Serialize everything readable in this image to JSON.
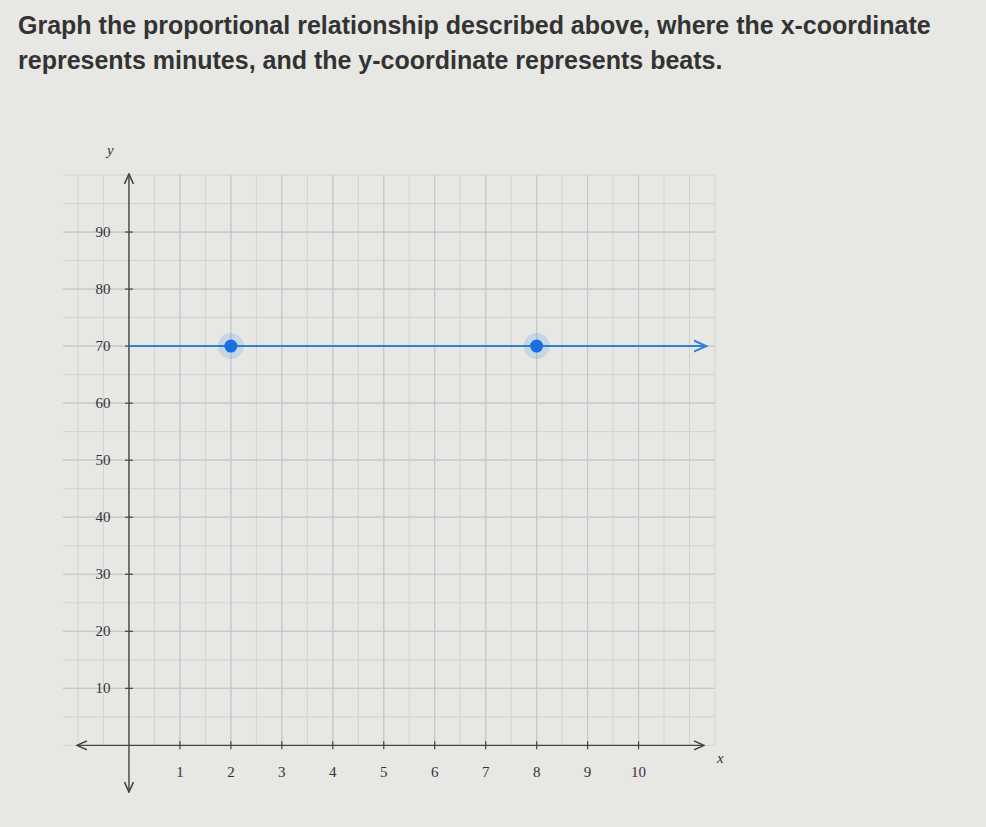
{
  "chart_data": {
    "type": "line",
    "title": "Graph the proportional relationship described above, where the x-coordinate represents minutes, and the y-coordinate represents beats.",
    "x_label": "x",
    "y_label": "y",
    "xlim": [
      -1,
      11.5
    ],
    "ylim": [
      -8,
      100
    ],
    "xticks": [
      1,
      2,
      3,
      4,
      5,
      6,
      7,
      8,
      9,
      10
    ],
    "yticks": [
      10,
      20,
      30,
      40,
      50,
      60,
      70,
      80,
      90
    ],
    "grid": true,
    "series": [
      {
        "type": "line",
        "color": "#2f80d8",
        "marker": "arrow",
        "line_style": "solid",
        "x": [
          0,
          11.3
        ],
        "values": [
          70,
          70
        ]
      },
      {
        "type": "scatter",
        "color": "#1a6fe0",
        "marker": "circle",
        "x": [
          2,
          8
        ],
        "values": [
          70,
          70
        ]
      }
    ]
  }
}
